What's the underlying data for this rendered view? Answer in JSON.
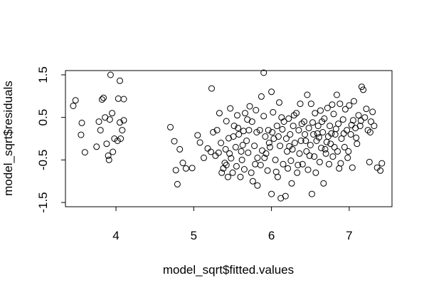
{
  "chart_data": {
    "type": "scatter",
    "title": "",
    "xlabel": "model_sqrt$fitted.values",
    "ylabel": "model_sqrt$residuals",
    "xlim": [
      3.35,
      7.55
    ],
    "ylim": [
      -1.6,
      1.6
    ],
    "xticks": [
      4,
      5,
      6,
      7
    ],
    "yticks": [
      -1.5,
      -0.5,
      0.5,
      1.5
    ],
    "grid": false,
    "legend": "none",
    "point_style": "open-circle",
    "color": "#000000",
    "points": [
      [
        3.45,
        0.77
      ],
      [
        3.48,
        0.9
      ],
      [
        3.55,
        0.09
      ],
      [
        3.56,
        0.37
      ],
      [
        3.6,
        -0.32
      ],
      [
        3.75,
        -0.19
      ],
      [
        3.78,
        0.4
      ],
      [
        3.8,
        0.2
      ],
      [
        3.82,
        0.92
      ],
      [
        3.84,
        0.96
      ],
      [
        3.86,
        0.5
      ],
      [
        3.88,
        -0.12
      ],
      [
        3.9,
        -0.4
      ],
      [
        3.91,
        -0.5
      ],
      [
        3.92,
        0.45
      ],
      [
        3.93,
        1.5
      ],
      [
        3.95,
        0.6
      ],
      [
        3.96,
        -0.31
      ],
      [
        3.98,
        0.0
      ],
      [
        4.02,
        -0.05
      ],
      [
        4.03,
        0.94
      ],
      [
        4.05,
        0.38
      ],
      [
        4.05,
        1.36
      ],
      [
        4.06,
        0.0
      ],
      [
        4.08,
        0.2
      ],
      [
        4.1,
        0.43
      ],
      [
        4.1,
        0.93
      ],
      [
        4.7,
        0.27
      ],
      [
        4.75,
        -0.06
      ],
      [
        4.77,
        -0.74
      ],
      [
        4.79,
        -1.07
      ],
      [
        4.82,
        -0.25
      ],
      [
        4.86,
        -0.57
      ],
      [
        4.9,
        -0.7
      ],
      [
        4.98,
        -0.69
      ],
      [
        5.05,
        0.08
      ],
      [
        5.08,
        -0.09
      ],
      [
        5.13,
        -0.45
      ],
      [
        5.18,
        -0.23
      ],
      [
        5.23,
        1.18
      ],
      [
        5.22,
        -0.31
      ],
      [
        5.25,
        0.15
      ],
      [
        5.28,
        -0.4
      ],
      [
        5.32,
        -0.33
      ],
      [
        5.35,
        -0.1
      ],
      [
        5.33,
        0.6
      ],
      [
        5.38,
        -0.7
      ],
      [
        5.4,
        -0.57
      ],
      [
        5.42,
        -0.62
      ],
      [
        5.42,
        0.41
      ],
      [
        5.44,
        -0.9
      ],
      [
        5.45,
        0.01
      ],
      [
        5.47,
        0.71
      ],
      [
        5.48,
        -0.46
      ],
      [
        5.5,
        -0.8
      ],
      [
        5.52,
        0.3
      ],
      [
        5.54,
        -0.2
      ],
      [
        5.55,
        -0.65
      ],
      [
        5.56,
        0.55
      ],
      [
        5.58,
        0.1
      ],
      [
        5.6,
        -0.9
      ],
      [
        5.62,
        -0.5
      ],
      [
        5.64,
        0.18
      ],
      [
        5.65,
        -0.72
      ],
      [
        5.66,
        0.6
      ],
      [
        5.68,
        -0.05
      ],
      [
        5.7,
        -0.33
      ],
      [
        5.72,
        0.76
      ],
      [
        5.74,
        -0.8
      ],
      [
        5.75,
        0.4
      ],
      [
        5.76,
        -1.0
      ],
      [
        5.78,
        -0.17
      ],
      [
        5.8,
        0.67
      ],
      [
        5.82,
        -0.45
      ],
      [
        5.82,
        -1.1
      ],
      [
        5.85,
        0.2
      ],
      [
        5.86,
        -0.62
      ],
      [
        5.87,
        0.99
      ],
      [
        5.88,
        -0.28
      ],
      [
        5.9,
        0.53
      ],
      [
        5.9,
        1.55
      ],
      [
        5.92,
        0.05
      ],
      [
        5.93,
        -0.35
      ],
      [
        5.95,
        -0.75
      ],
      [
        5.96,
        0.2
      ],
      [
        5.98,
        -0.2
      ],
      [
        6.0,
        1.1
      ],
      [
        6.0,
        -1.3
      ],
      [
        6.02,
        0.62
      ],
      [
        6.03,
        0.0
      ],
      [
        6.05,
        -0.5
      ],
      [
        6.07,
        0.3
      ],
      [
        6.08,
        -0.9
      ],
      [
        6.1,
        0.85
      ],
      [
        6.11,
        -0.17
      ],
      [
        6.12,
        -1.4
      ],
      [
        6.14,
        0.22
      ],
      [
        6.15,
        -0.6
      ],
      [
        6.16,
        0.4
      ],
      [
        6.18,
        -1.35
      ],
      [
        6.19,
        0.0
      ],
      [
        6.2,
        -0.3
      ],
      [
        6.21,
        -0.7
      ],
      [
        6.22,
        0.47
      ],
      [
        6.24,
        0.1
      ],
      [
        6.25,
        -0.52
      ],
      [
        6.26,
        -1.05
      ],
      [
        6.28,
        0.3
      ],
      [
        6.3,
        -0.1
      ],
      [
        6.32,
        0.6
      ],
      [
        6.33,
        -0.8
      ],
      [
        6.35,
        0.2
      ],
      [
        6.36,
        -0.35
      ],
      [
        6.37,
        0.82
      ],
      [
        6.38,
        -0.05
      ],
      [
        6.4,
        -0.6
      ],
      [
        6.42,
        0.4
      ],
      [
        6.43,
        0.1
      ],
      [
        6.45,
        -0.3
      ],
      [
        6.46,
        1.03
      ],
      [
        6.47,
        -0.73
      ],
      [
        6.48,
        0.25
      ],
      [
        6.5,
        -0.15
      ],
      [
        6.51,
        0.82
      ],
      [
        6.52,
        -1.3
      ],
      [
        6.54,
        0.1
      ],
      [
        6.55,
        -0.42
      ],
      [
        6.56,
        0.6
      ],
      [
        6.58,
        -0.05
      ],
      [
        6.6,
        0.3
      ],
      [
        6.62,
        -0.55
      ],
      [
        6.63,
        0.66
      ],
      [
        6.64,
        -0.22
      ],
      [
        6.66,
        0.15
      ],
      [
        6.67,
        -1.05
      ],
      [
        6.68,
        0.47
      ],
      [
        6.7,
        -0.35
      ],
      [
        6.72,
        0.72
      ],
      [
        6.73,
        0.05
      ],
      [
        6.74,
        -0.6
      ],
      [
        6.75,
        0.3
      ],
      [
        6.76,
        -0.12
      ],
      [
        6.78,
        0.8
      ],
      [
        6.79,
        -0.42
      ],
      [
        6.8,
        0.58
      ],
      [
        6.82,
        0.1
      ],
      [
        6.84,
        1.03
      ],
      [
        6.85,
        -0.3
      ],
      [
        6.86,
        0.35
      ],
      [
        6.87,
        -0.7
      ],
      [
        6.88,
        0.82
      ],
      [
        6.9,
        0.0
      ],
      [
        6.92,
        0.45
      ],
      [
        6.94,
        -0.2
      ],
      [
        6.95,
        0.69
      ],
      [
        6.97,
        0.2
      ],
      [
        6.98,
        -0.45
      ],
      [
        7.0,
        0.78
      ],
      [
        7.02,
        0.1
      ],
      [
        7.04,
        -0.68
      ],
      [
        7.05,
        0.43
      ],
      [
        7.06,
        0.88
      ],
      [
        7.08,
        0.25
      ],
      [
        7.1,
        -0.12
      ],
      [
        7.12,
        0.55
      ],
      [
        7.14,
        0.3
      ],
      [
        7.16,
        1.22
      ],
      [
        7.18,
        1.15
      ],
      [
        7.2,
        0.5
      ],
      [
        7.22,
        0.7
      ],
      [
        7.24,
        0.2
      ],
      [
        7.26,
        -0.55
      ],
      [
        7.28,
        0.4
      ],
      [
        7.3,
        0.63
      ],
      [
        7.32,
        0.3
      ],
      [
        7.36,
        -0.68
      ],
      [
        7.4,
        -0.75
      ],
      [
        7.42,
        -0.58
      ],
      [
        5.3,
        0.2
      ],
      [
        5.36,
        -0.8
      ],
      [
        5.46,
        -0.35
      ],
      [
        5.57,
        0.25
      ],
      [
        5.63,
        -0.15
      ],
      [
        5.69,
        0.45
      ],
      [
        5.79,
        -0.6
      ],
      [
        5.91,
        -0.45
      ],
      [
        6.01,
        0.15
      ],
      [
        6.06,
        -0.78
      ],
      [
        6.13,
        0.5
      ],
      [
        6.23,
        -0.18
      ],
      [
        6.29,
        0.55
      ],
      [
        6.34,
        -0.62
      ],
      [
        6.44,
        -0.05
      ],
      [
        6.53,
        0.38
      ],
      [
        6.57,
        -0.8
      ],
      [
        6.61,
        0.03
      ],
      [
        6.65,
        0.4
      ],
      [
        6.69,
        -0.25
      ],
      [
        6.77,
        0.12
      ],
      [
        6.81,
        -0.2
      ],
      [
        6.83,
        0.23
      ],
      [
        6.89,
        -0.58
      ],
      [
        6.93,
        0.12
      ],
      [
        6.99,
        -0.3
      ],
      [
        7.03,
        0.32
      ],
      [
        7.09,
        0.02
      ],
      [
        7.15,
        0.42
      ],
      [
        7.27,
        0.15
      ],
      [
        5.41,
        -0.25
      ],
      [
        5.51,
        0.05
      ],
      [
        5.61,
        -0.3
      ],
      [
        5.71,
        0.2
      ],
      [
        5.81,
        0.15
      ],
      [
        5.97,
        -0.1
      ],
      [
        6.09,
        0.05
      ],
      [
        6.27,
        -0.25
      ],
      [
        6.39,
        0.35
      ],
      [
        6.49,
        -0.4
      ],
      [
        6.59,
        0.12
      ],
      [
        6.71,
        -0.08
      ]
    ]
  }
}
